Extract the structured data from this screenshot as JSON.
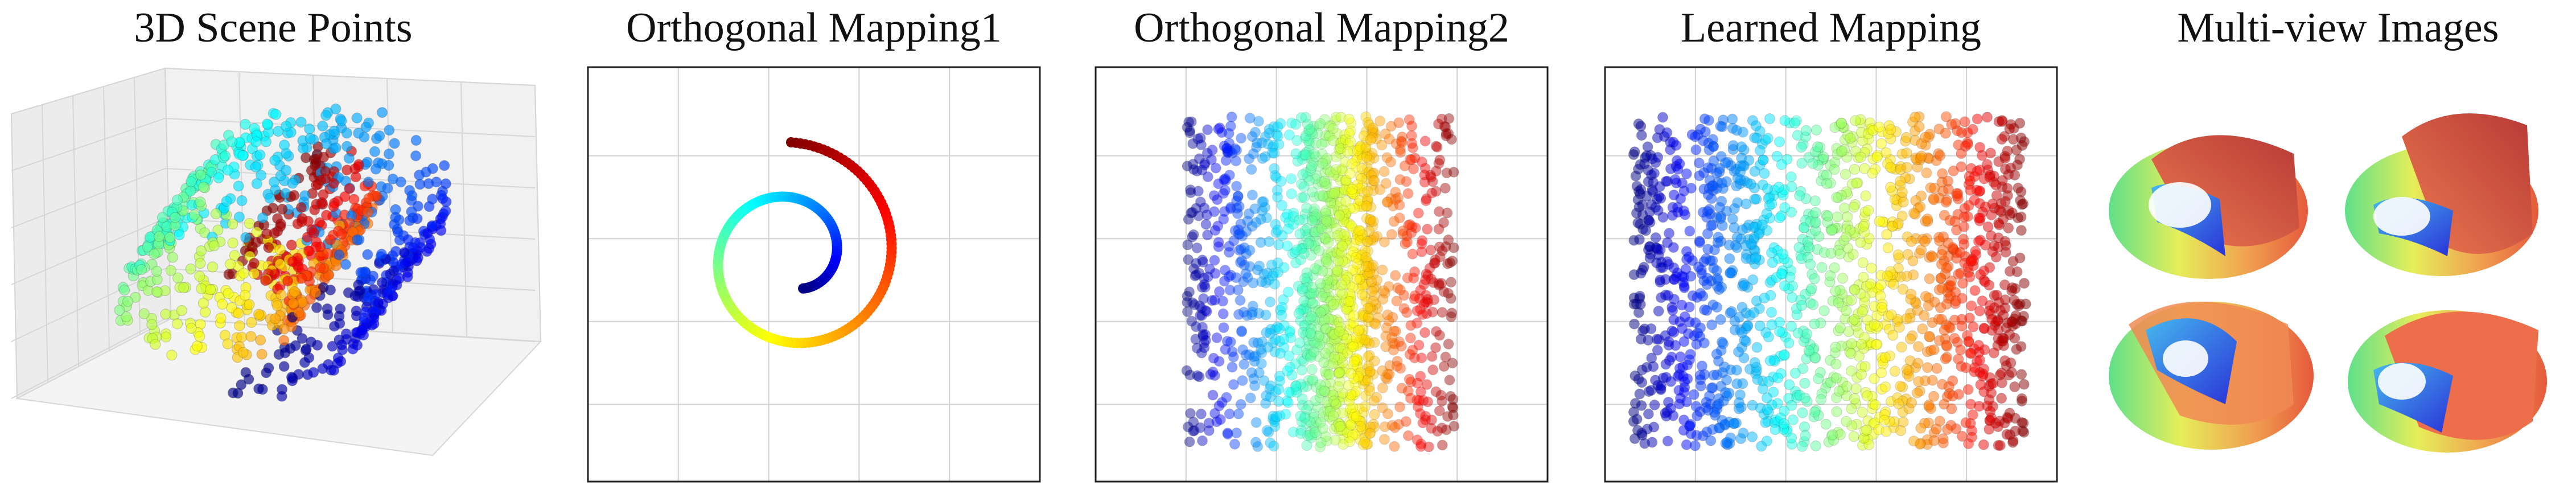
{
  "panels": [
    {
      "title": "3D Scene Points"
    },
    {
      "title": "Orthogonal Mapping1"
    },
    {
      "title": "Orthogonal Mapping2"
    },
    {
      "title": "Learned Mapping"
    },
    {
      "title": "Multi-view Images"
    }
  ]
}
